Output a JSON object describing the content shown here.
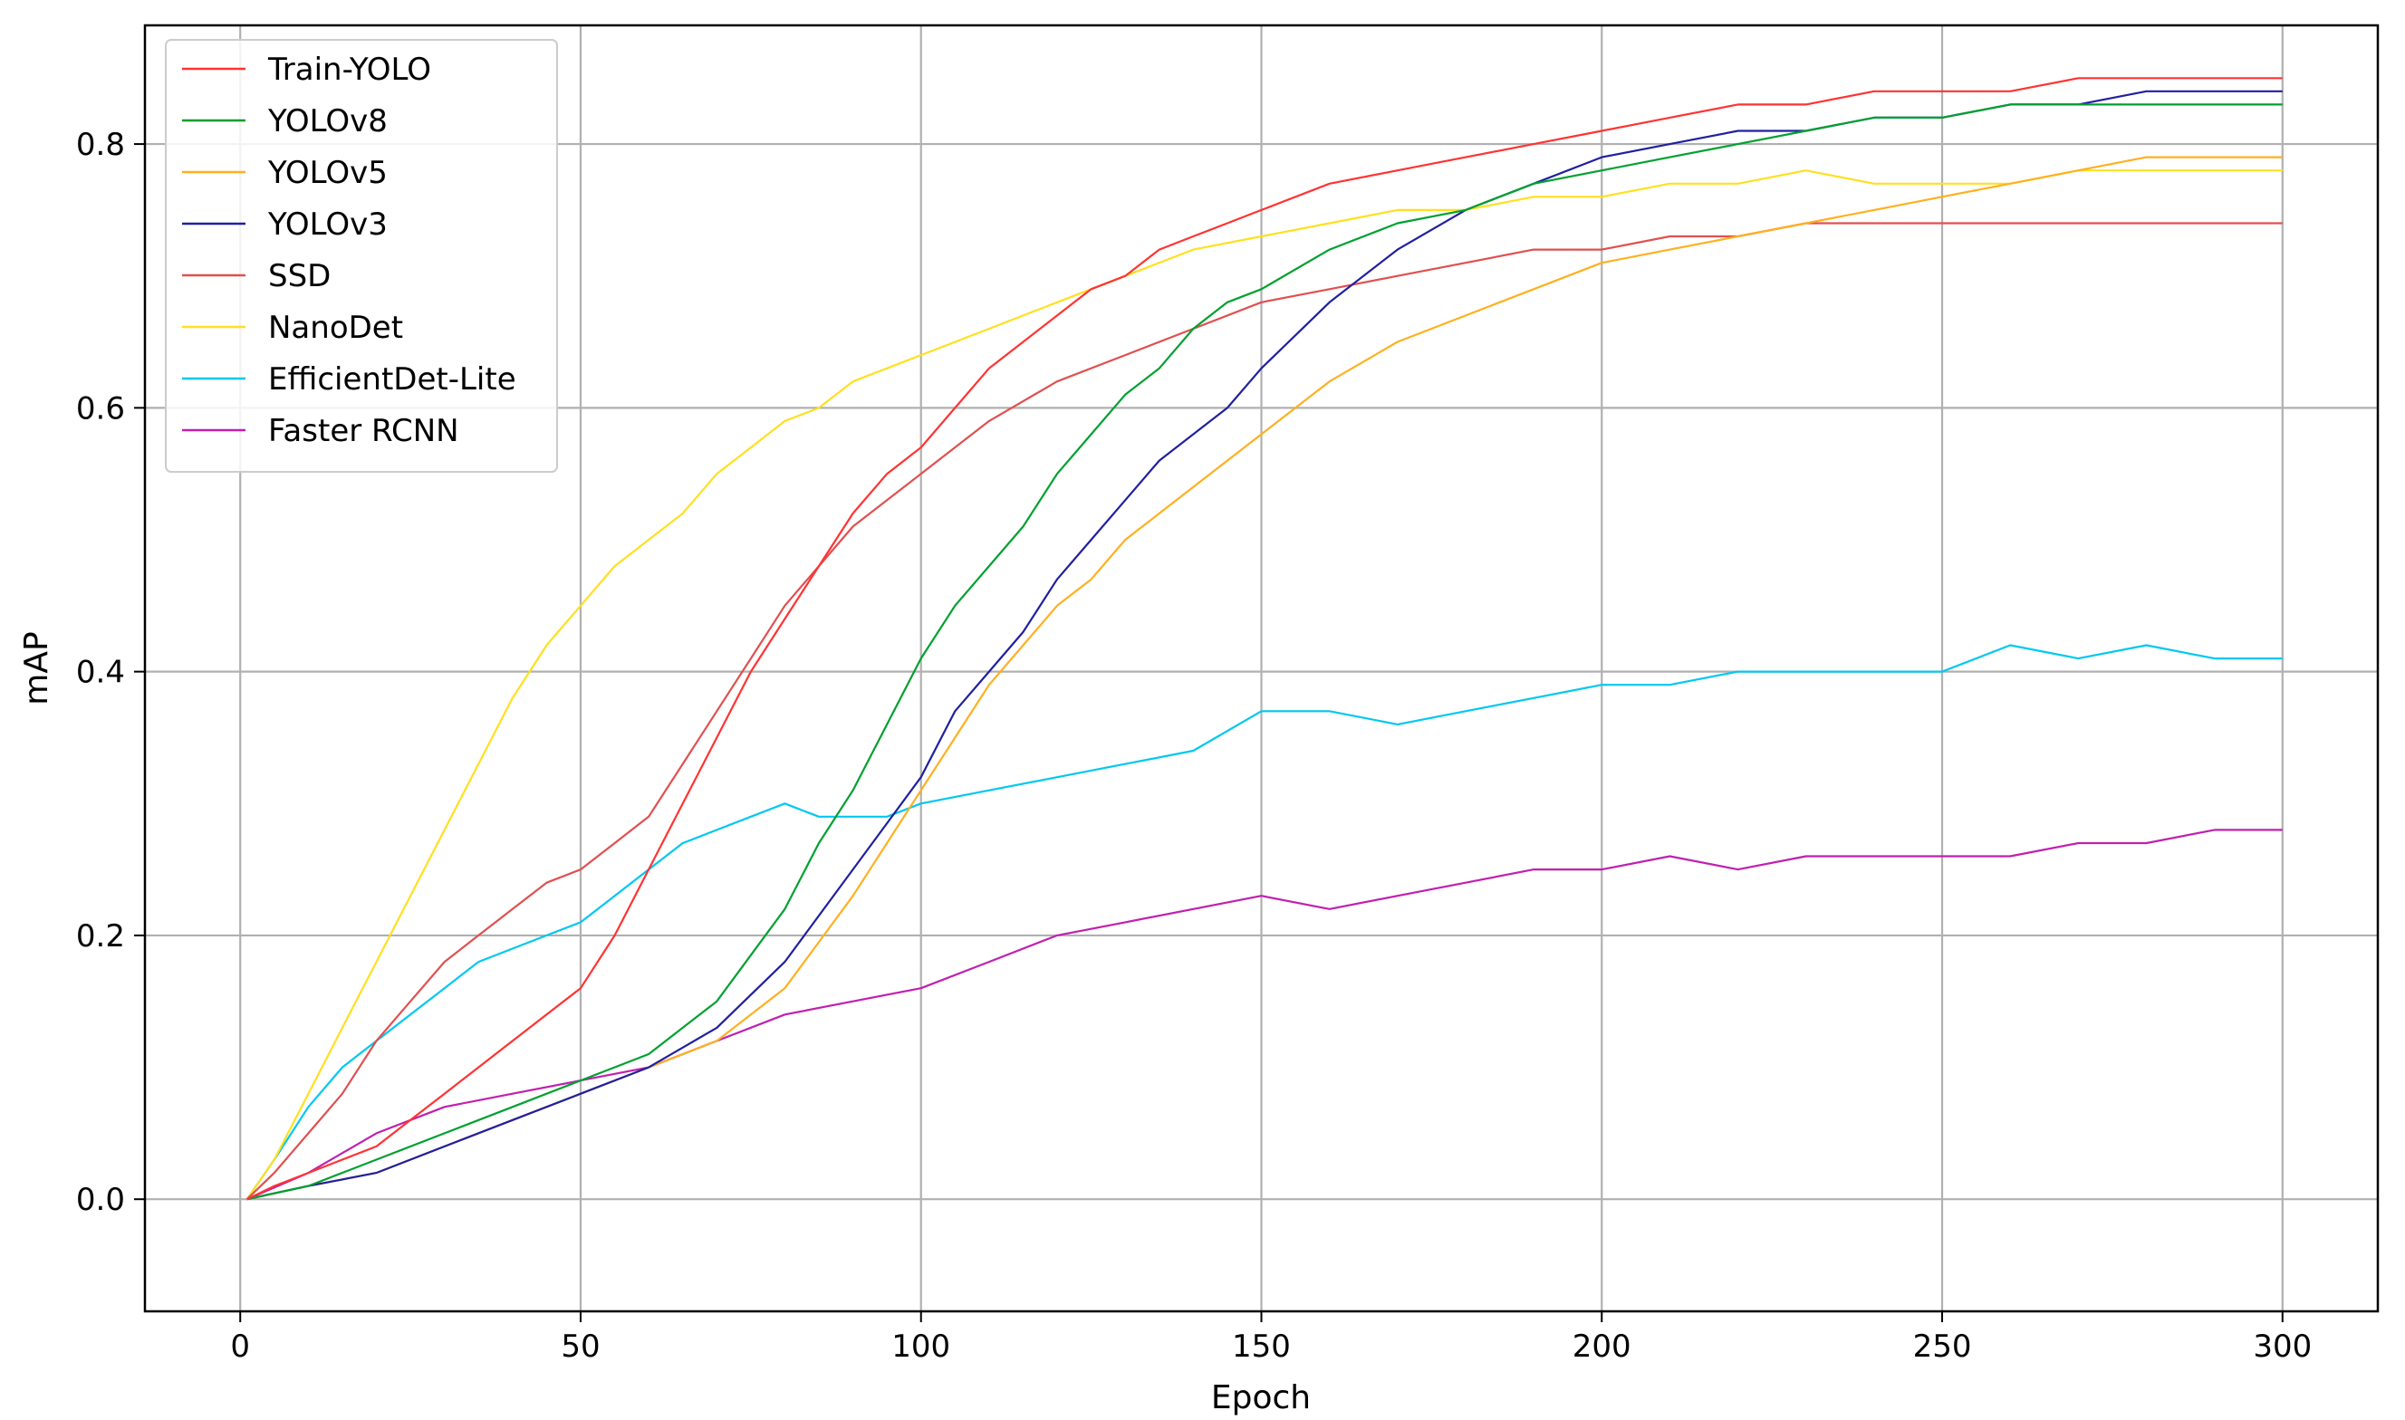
{
  "chart_data": {
    "type": "line",
    "title": "",
    "xlabel": "Epoch",
    "ylabel": "mAP",
    "xlim": [
      -14,
      314
    ],
    "ylim": [
      -0.085,
      0.89
    ],
    "xticks": [
      0,
      50,
      100,
      150,
      200,
      250,
      300
    ],
    "yticks": [
      0.0,
      0.2,
      0.4,
      0.6,
      0.8
    ],
    "xtick_labels": [
      "0",
      "50",
      "100",
      "150",
      "200",
      "250",
      "300"
    ],
    "ytick_labels": [
      "0.0",
      "0.2",
      "0.4",
      "0.6",
      "0.8"
    ],
    "grid": true,
    "legend_position": "top-left",
    "series": [
      {
        "name": "Train-YOLO",
        "color": "#ff3333",
        "x": [
          1,
          5,
          10,
          15,
          20,
          25,
          30,
          35,
          40,
          45,
          50,
          55,
          60,
          65,
          70,
          75,
          80,
          85,
          90,
          95,
          100,
          105,
          110,
          115,
          120,
          125,
          130,
          135,
          140,
          145,
          150,
          160,
          170,
          180,
          190,
          200,
          210,
          220,
          230,
          240,
          250,
          260,
          270,
          280,
          290,
          300
        ],
        "y": [
          0.0,
          0.01,
          0.02,
          0.03,
          0.04,
          0.06,
          0.08,
          0.1,
          0.12,
          0.14,
          0.16,
          0.2,
          0.25,
          0.3,
          0.35,
          0.4,
          0.44,
          0.48,
          0.52,
          0.55,
          0.57,
          0.6,
          0.63,
          0.65,
          0.67,
          0.69,
          0.7,
          0.72,
          0.73,
          0.74,
          0.75,
          0.77,
          0.78,
          0.79,
          0.8,
          0.81,
          0.82,
          0.83,
          0.83,
          0.84,
          0.84,
          0.84,
          0.85,
          0.85,
          0.85,
          0.85
        ]
      },
      {
        "name": "YOLOv8",
        "color": "#00a030",
        "x": [
          1,
          10,
          20,
          30,
          40,
          50,
          60,
          70,
          80,
          85,
          90,
          95,
          100,
          105,
          110,
          115,
          120,
          125,
          130,
          135,
          140,
          145,
          150,
          160,
          170,
          180,
          190,
          200,
          210,
          220,
          230,
          240,
          250,
          260,
          270,
          280,
          290,
          300
        ],
        "y": [
          0.0,
          0.01,
          0.03,
          0.05,
          0.07,
          0.09,
          0.11,
          0.15,
          0.22,
          0.27,
          0.31,
          0.36,
          0.41,
          0.45,
          0.48,
          0.51,
          0.55,
          0.58,
          0.61,
          0.63,
          0.66,
          0.68,
          0.69,
          0.72,
          0.74,
          0.75,
          0.77,
          0.78,
          0.79,
          0.8,
          0.81,
          0.82,
          0.82,
          0.83,
          0.83,
          0.83,
          0.83,
          0.83
        ]
      },
      {
        "name": "YOLOv5",
        "color": "#ffb020",
        "x": [
          1,
          10,
          20,
          30,
          40,
          50,
          60,
          70,
          80,
          90,
          100,
          105,
          110,
          115,
          120,
          125,
          130,
          135,
          140,
          145,
          150,
          160,
          170,
          180,
          190,
          200,
          210,
          220,
          230,
          240,
          250,
          260,
          270,
          280,
          290,
          300
        ],
        "y": [
          0.0,
          0.01,
          0.02,
          0.04,
          0.06,
          0.08,
          0.1,
          0.12,
          0.16,
          0.23,
          0.31,
          0.35,
          0.39,
          0.42,
          0.45,
          0.47,
          0.5,
          0.52,
          0.54,
          0.56,
          0.58,
          0.62,
          0.65,
          0.67,
          0.69,
          0.71,
          0.72,
          0.73,
          0.74,
          0.75,
          0.76,
          0.77,
          0.78,
          0.79,
          0.79,
          0.79
        ]
      },
      {
        "name": "YOLOv3",
        "color": "#2020a0",
        "x": [
          1,
          10,
          20,
          30,
          40,
          50,
          60,
          70,
          80,
          90,
          100,
          105,
          110,
          115,
          120,
          125,
          130,
          135,
          140,
          145,
          150,
          160,
          170,
          180,
          190,
          200,
          210,
          220,
          230,
          240,
          250,
          260,
          270,
          280,
          290,
          300
        ],
        "y": [
          0.0,
          0.01,
          0.02,
          0.04,
          0.06,
          0.08,
          0.1,
          0.13,
          0.18,
          0.25,
          0.32,
          0.37,
          0.4,
          0.43,
          0.47,
          0.5,
          0.53,
          0.56,
          0.58,
          0.6,
          0.63,
          0.68,
          0.72,
          0.75,
          0.77,
          0.79,
          0.8,
          0.81,
          0.81,
          0.82,
          0.82,
          0.83,
          0.83,
          0.84,
          0.84,
          0.84
        ]
      },
      {
        "name": "SSD",
        "color": "#e05050",
        "x": [
          1,
          5,
          10,
          15,
          20,
          25,
          30,
          35,
          40,
          45,
          50,
          55,
          60,
          65,
          70,
          75,
          80,
          85,
          90,
          95,
          100,
          110,
          120,
          130,
          140,
          150,
          160,
          170,
          180,
          190,
          200,
          210,
          220,
          230,
          240,
          250,
          260,
          270,
          280,
          290,
          300
        ],
        "y": [
          0.0,
          0.02,
          0.05,
          0.08,
          0.12,
          0.15,
          0.18,
          0.2,
          0.22,
          0.24,
          0.25,
          0.27,
          0.29,
          0.33,
          0.37,
          0.41,
          0.45,
          0.48,
          0.51,
          0.53,
          0.55,
          0.59,
          0.62,
          0.64,
          0.66,
          0.68,
          0.69,
          0.7,
          0.71,
          0.72,
          0.72,
          0.73,
          0.73,
          0.74,
          0.74,
          0.74,
          0.74,
          0.74,
          0.74,
          0.74,
          0.74
        ]
      },
      {
        "name": "NanoDet",
        "color": "#ffe020",
        "x": [
          1,
          5,
          10,
          15,
          20,
          25,
          30,
          35,
          40,
          45,
          50,
          55,
          60,
          65,
          70,
          75,
          80,
          85,
          90,
          95,
          100,
          110,
          120,
          130,
          140,
          150,
          160,
          170,
          180,
          190,
          200,
          210,
          220,
          230,
          240,
          250,
          260,
          270,
          280,
          290,
          300
        ],
        "y": [
          0.0,
          0.03,
          0.08,
          0.13,
          0.18,
          0.23,
          0.28,
          0.33,
          0.38,
          0.42,
          0.45,
          0.48,
          0.5,
          0.52,
          0.55,
          0.57,
          0.59,
          0.6,
          0.62,
          0.63,
          0.64,
          0.66,
          0.68,
          0.7,
          0.72,
          0.73,
          0.74,
          0.75,
          0.75,
          0.76,
          0.76,
          0.77,
          0.77,
          0.78,
          0.77,
          0.77,
          0.77,
          0.78,
          0.78,
          0.78,
          0.78
        ]
      },
      {
        "name": "EfficientDet-Lite",
        "color": "#00c8f0",
        "x": [
          1,
          5,
          10,
          15,
          20,
          25,
          30,
          35,
          40,
          45,
          50,
          55,
          60,
          65,
          70,
          75,
          80,
          85,
          90,
          95,
          100,
          110,
          120,
          130,
          140,
          150,
          160,
          170,
          180,
          190,
          200,
          210,
          220,
          230,
          240,
          250,
          260,
          270,
          280,
          290,
          300
        ],
        "y": [
          0.0,
          0.03,
          0.07,
          0.1,
          0.12,
          0.14,
          0.16,
          0.18,
          0.19,
          0.2,
          0.21,
          0.23,
          0.25,
          0.27,
          0.28,
          0.29,
          0.3,
          0.29,
          0.29,
          0.29,
          0.3,
          0.31,
          0.32,
          0.33,
          0.34,
          0.37,
          0.37,
          0.36,
          0.37,
          0.38,
          0.39,
          0.39,
          0.4,
          0.4,
          0.4,
          0.4,
          0.42,
          0.41,
          0.42,
          0.41,
          0.41
        ]
      },
      {
        "name": "Faster RCNN",
        "color": "#c020b0",
        "x": [
          1,
          10,
          20,
          30,
          40,
          50,
          60,
          70,
          80,
          90,
          100,
          110,
          120,
          130,
          140,
          150,
          160,
          170,
          180,
          190,
          200,
          210,
          220,
          230,
          240,
          250,
          260,
          270,
          280,
          290,
          300
        ],
        "y": [
          0.0,
          0.02,
          0.05,
          0.07,
          0.08,
          0.09,
          0.1,
          0.12,
          0.14,
          0.15,
          0.16,
          0.18,
          0.2,
          0.21,
          0.22,
          0.23,
          0.22,
          0.23,
          0.24,
          0.25,
          0.25,
          0.26,
          0.25,
          0.26,
          0.26,
          0.26,
          0.26,
          0.27,
          0.27,
          0.28,
          0.28
        ]
      }
    ]
  }
}
